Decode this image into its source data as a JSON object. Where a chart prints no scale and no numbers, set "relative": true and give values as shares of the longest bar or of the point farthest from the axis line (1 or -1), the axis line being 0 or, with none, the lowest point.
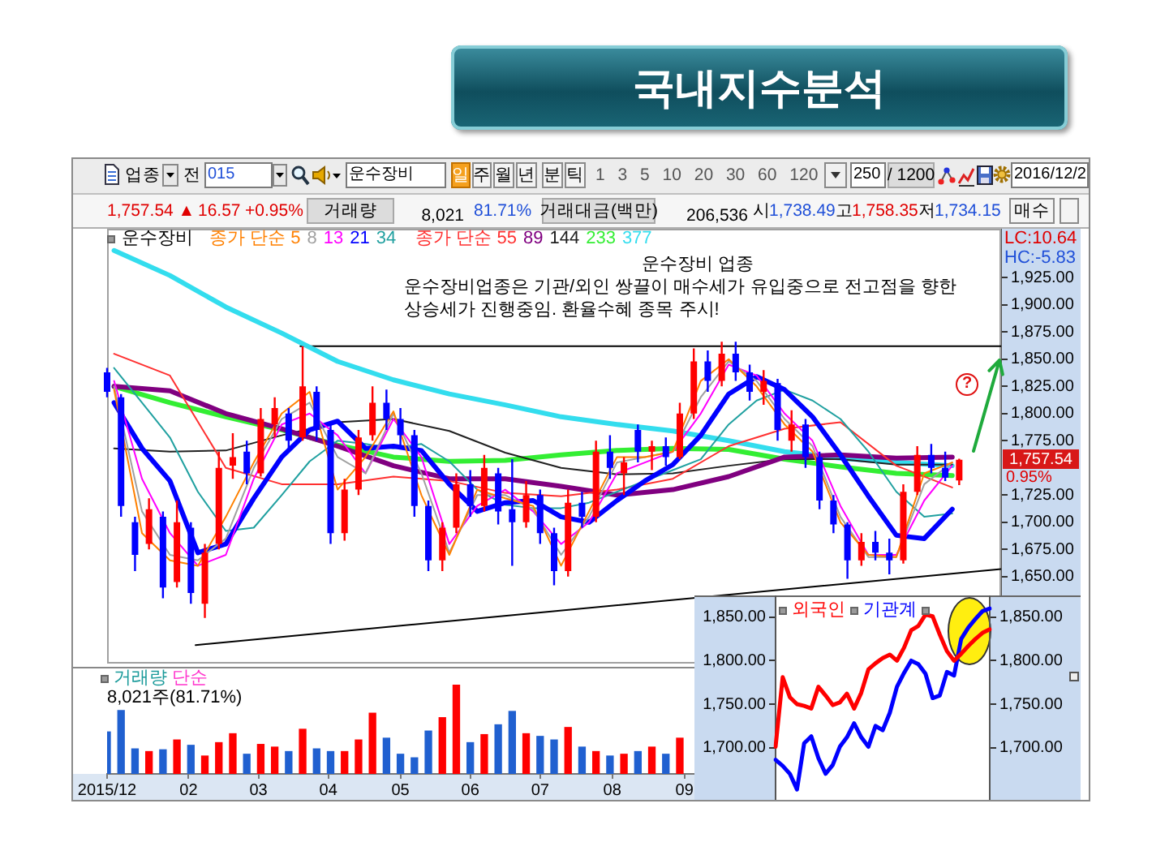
{
  "chart_data": [
    {
      "type": "other",
      "title": "국내지수분석",
      "annotations": [
        "업종",
        "전",
        "015",
        "운수장비",
        "일",
        "주",
        "월",
        "년",
        "분",
        "틱",
        "1 3 5 10 20 30 60 120",
        "250",
        "/ 1200",
        "2016/12/2",
        "1,757.54 ▲",
        "16.57",
        "+0.95%",
        "거래량",
        "8,021",
        "81.71%",
        "거래대금(백만)",
        "206,536",
        "시",
        "1,738.49",
        "고",
        "1,758.35",
        "저",
        "1,734.15",
        "매수"
      ]
    },
    {
      "type": "candlestick",
      "x": [
        "2015-12-28",
        "2016-01-03",
        "2016-01-09",
        "2016-01-15",
        "2016-01-21",
        "2016-01-27",
        "2016-02-02",
        "2016-02-08",
        "2016-02-14",
        "2016-02-20",
        "2016-02-26",
        "2016-03-03",
        "2016-03-09",
        "2016-03-15",
        "2016-03-21",
        "2016-03-27",
        "2016-04-02",
        "2016-04-08",
        "2016-04-14",
        "2016-04-20",
        "2016-04-26",
        "2016-05-02",
        "2016-05-08",
        "2016-05-14",
        "2016-05-20",
        "2016-05-26",
        "2016-06-01",
        "2016-06-07",
        "2016-06-13",
        "2016-06-19",
        "2016-06-25",
        "2016-07-01",
        "2016-07-07",
        "2016-07-13",
        "2016-07-19",
        "2016-07-25",
        "2016-07-31",
        "2016-08-06",
        "2016-08-12",
        "2016-08-18",
        "2016-08-24",
        "2016-08-30",
        "2016-09-05",
        "2016-09-11",
        "2016-09-17",
        "2016-09-23",
        "2016-09-29",
        "2016-10-05",
        "2016-10-11",
        "2016-10-17",
        "2016-10-23",
        "2016-10-29",
        "2016-11-04",
        "2016-11-10",
        "2016-11-16",
        "2016-11-22",
        "2016-11-28",
        "2016-12-04",
        "2016-12-10",
        "2016-12-16",
        "2016-12-22",
        "2016-12-28"
      ],
      "ohlc": [
        [
          1838,
          1842,
          1815,
          1820
        ],
        [
          1815,
          1818,
          1705,
          1715
        ],
        [
          1700,
          1705,
          1655,
          1670
        ],
        [
          1680,
          1722,
          1675,
          1712
        ],
        [
          1705,
          1710,
          1630,
          1640
        ],
        [
          1645,
          1720,
          1640,
          1700
        ],
        [
          1695,
          1700,
          1625,
          1635
        ],
        [
          1625,
          1680,
          1612,
          1672
        ],
        [
          1680,
          1765,
          1675,
          1750
        ],
        [
          1752,
          1782,
          1740,
          1760
        ],
        [
          1765,
          1775,
          1735,
          1745
        ],
        [
          1745,
          1805,
          1742,
          1795
        ],
        [
          1790,
          1815,
          1778,
          1805
        ],
        [
          1800,
          1805,
          1768,
          1775
        ],
        [
          1778,
          1862,
          1775,
          1825
        ],
        [
          1820,
          1825,
          1775,
          1785
        ],
        [
          1785,
          1790,
          1680,
          1690
        ],
        [
          1690,
          1740,
          1683,
          1730
        ],
        [
          1730,
          1785,
          1725,
          1778
        ],
        [
          1780,
          1825,
          1775,
          1810
        ],
        [
          1810,
          1822,
          1785,
          1795
        ],
        [
          1795,
          1805,
          1770,
          1780
        ],
        [
          1780,
          1785,
          1705,
          1715
        ],
        [
          1715,
          1720,
          1655,
          1665
        ],
        [
          1665,
          1700,
          1655,
          1695
        ],
        [
          1695,
          1745,
          1690,
          1735
        ],
        [
          1735,
          1748,
          1705,
          1715
        ],
        [
          1715,
          1762,
          1710,
          1750
        ],
        [
          1745,
          1750,
          1698,
          1710
        ],
        [
          1712,
          1758,
          1660,
          1700
        ],
        [
          1700,
          1738,
          1695,
          1725
        ],
        [
          1725,
          1730,
          1680,
          1690
        ],
        [
          1690,
          1695,
          1642,
          1655
        ],
        [
          1655,
          1730,
          1650,
          1718
        ],
        [
          1718,
          1728,
          1695,
          1705
        ],
        [
          1705,
          1775,
          1700,
          1765
        ],
        [
          1765,
          1780,
          1740,
          1750
        ],
        [
          1745,
          1760,
          1725,
          1755
        ],
        [
          1785,
          1790,
          1755,
          1765
        ],
        [
          1765,
          1775,
          1748,
          1770
        ],
        [
          1770,
          1778,
          1752,
          1760
        ],
        [
          1760,
          1810,
          1758,
          1800
        ],
        [
          1800,
          1860,
          1795,
          1848
        ],
        [
          1848,
          1858,
          1820,
          1830
        ],
        [
          1830,
          1866,
          1825,
          1855
        ],
        [
          1855,
          1866,
          1830,
          1838
        ],
        [
          1838,
          1845,
          1812,
          1820
        ],
        [
          1820,
          1840,
          1808,
          1830
        ],
        [
          1828,
          1832,
          1775,
          1785
        ],
        [
          1775,
          1803,
          1765,
          1790
        ],
        [
          1790,
          1795,
          1750,
          1760
        ],
        [
          1760,
          1765,
          1712,
          1720
        ],
        [
          1720,
          1725,
          1690,
          1698
        ],
        [
          1698,
          1700,
          1648,
          1665
        ],
        [
          1665,
          1690,
          1660,
          1682
        ],
        [
          1682,
          1692,
          1665,
          1672
        ],
        [
          1672,
          1685,
          1652,
          1665
        ],
        [
          1665,
          1735,
          1662,
          1728
        ],
        [
          1728,
          1770,
          1725,
          1762
        ],
        [
          1762,
          1772,
          1745,
          1750
        ],
        [
          1750,
          1765,
          1738,
          1741
        ],
        [
          1738.49,
          1758.35,
          1734.15,
          1757.54
        ]
      ],
      "colors": [
        "#0000ff",
        "#0000ff",
        "#0000ff",
        "#ff0000",
        "#0000ff",
        "#ff0000",
        "#0000ff",
        "#ff0000",
        "#ff0000",
        "#ff0000",
        "#0000ff",
        "#ff0000",
        "#ff0000",
        "#0000ff",
        "#ff0000",
        "#0000ff",
        "#0000ff",
        "#ff0000",
        "#ff0000",
        "#ff0000",
        "#0000ff",
        "#0000ff",
        "#0000ff",
        "#0000ff",
        "#ff0000",
        "#ff0000",
        "#0000ff",
        "#ff0000",
        "#0000ff",
        "#0000ff",
        "#ff0000",
        "#0000ff",
        "#0000ff",
        "#ff0000",
        "#0000ff",
        "#ff0000",
        "#0000ff",
        "#ff0000",
        "#0000ff",
        "#ff0000",
        "#0000ff",
        "#ff0000",
        "#ff0000",
        "#0000ff",
        "#ff0000",
        "#0000ff",
        "#0000ff",
        "#ff0000",
        "#0000ff",
        "#ff0000",
        "#0000ff",
        "#0000ff",
        "#0000ff",
        "#0000ff",
        "#ff0000",
        "#0000ff",
        "#0000ff",
        "#ff0000",
        "#ff0000",
        "#0000ff",
        "#0000ff",
        "#ff0000"
      ],
      "series": [
        {
          "name": "종가 단순 5",
          "type": "line",
          "color": "#ff8000",
          "x": [
            "2015-12-31",
            "2016-01-12",
            "2016-01-24",
            "2016-02-05",
            "2016-02-17",
            "2016-02-29",
            "2016-03-12",
            "2016-03-24",
            "2016-04-05",
            "2016-04-17",
            "2016-04-29",
            "2016-05-11",
            "2016-05-23",
            "2016-06-04",
            "2016-06-16",
            "2016-06-28",
            "2016-07-10",
            "2016-07-22",
            "2016-08-03",
            "2016-08-15",
            "2016-08-27",
            "2016-09-08",
            "2016-09-20",
            "2016-10-02",
            "2016-10-14",
            "2016-10-26",
            "2016-11-07",
            "2016-11-19",
            "2016-12-01",
            "2016-12-13",
            "2016-12-25"
          ],
          "values": [
            1822,
            1690,
            1665,
            1660,
            1705,
            1755,
            1800,
            1820,
            1730,
            1760,
            1802,
            1725,
            1670,
            1730,
            1722,
            1715,
            1660,
            1710,
            1760,
            1760,
            1765,
            1830,
            1850,
            1825,
            1790,
            1765,
            1700,
            1670,
            1668,
            1745,
            1755
          ]
        },
        {
          "name": "8",
          "type": "line",
          "color": "#a0a0a0",
          "x": [
            "2015-12-31",
            "2016-01-12",
            "2016-01-24",
            "2016-02-05",
            "2016-02-17",
            "2016-02-29",
            "2016-03-12",
            "2016-03-24",
            "2016-04-05",
            "2016-04-17",
            "2016-04-29",
            "2016-05-11",
            "2016-05-23",
            "2016-06-04",
            "2016-06-16",
            "2016-06-28",
            "2016-07-10",
            "2016-07-22",
            "2016-08-03",
            "2016-08-15",
            "2016-08-27",
            "2016-09-08",
            "2016-09-20",
            "2016-10-02",
            "2016-10-14",
            "2016-10-26",
            "2016-11-07",
            "2016-11-19",
            "2016-12-01",
            "2016-12-13",
            "2016-12-25"
          ],
          "values": [
            1825,
            1710,
            1670,
            1665,
            1685,
            1750,
            1795,
            1810,
            1760,
            1745,
            1800,
            1745,
            1672,
            1725,
            1725,
            1712,
            1670,
            1705,
            1755,
            1760,
            1765,
            1815,
            1848,
            1830,
            1795,
            1770,
            1705,
            1668,
            1668,
            1735,
            1755
          ]
        },
        {
          "name": "13",
          "type": "line",
          "color": "#ff00ff",
          "x": [
            "2015-12-31",
            "2016-01-12",
            "2016-01-24",
            "2016-02-05",
            "2016-02-17",
            "2016-02-29",
            "2016-03-12",
            "2016-03-24",
            "2016-04-05",
            "2016-04-17",
            "2016-04-29",
            "2016-05-11",
            "2016-05-23",
            "2016-06-04",
            "2016-06-16",
            "2016-06-28",
            "2016-07-10",
            "2016-07-22",
            "2016-08-03",
            "2016-08-15",
            "2016-08-27",
            "2016-09-08",
            "2016-09-20",
            "2016-10-02",
            "2016-10-14",
            "2016-10-26",
            "2016-11-07",
            "2016-11-19",
            "2016-12-01",
            "2016-12-13",
            "2016-12-25"
          ],
          "values": [
            1830,
            1740,
            1690,
            1660,
            1670,
            1740,
            1790,
            1800,
            1780,
            1745,
            1795,
            1760,
            1680,
            1715,
            1730,
            1710,
            1680,
            1700,
            1745,
            1755,
            1765,
            1800,
            1845,
            1835,
            1800,
            1775,
            1715,
            1670,
            1670,
            1720,
            1752
          ]
        },
        {
          "name": "21",
          "type": "line",
          "color": "#0000ff",
          "x": [
            "2015-12-31",
            "2016-01-12",
            "2016-01-24",
            "2016-02-05",
            "2016-02-17",
            "2016-02-29",
            "2016-03-12",
            "2016-03-24",
            "2016-04-05",
            "2016-04-17",
            "2016-04-29",
            "2016-05-11",
            "2016-05-23",
            "2016-06-04",
            "2016-06-16",
            "2016-06-28",
            "2016-07-10",
            "2016-07-22",
            "2016-08-03",
            "2016-08-15",
            "2016-08-27",
            "2016-09-08",
            "2016-09-20",
            "2016-10-02",
            "2016-10-14",
            "2016-10-26",
            "2016-11-07",
            "2016-11-19",
            "2016-12-01",
            "2016-12-13",
            "2016-12-25"
          ],
          "values": [
            1810,
            1768,
            1738,
            1672,
            1680,
            1722,
            1760,
            1785,
            1793,
            1768,
            1770,
            1766,
            1735,
            1710,
            1718,
            1720,
            1705,
            1700,
            1720,
            1738,
            1753,
            1780,
            1818,
            1834,
            1822,
            1797,
            1762,
            1724,
            1688,
            1685,
            1712
          ]
        },
        {
          "name": "34",
          "type": "line",
          "color": "#20a0a0",
          "x": [
            "2015-12-31",
            "2016-01-12",
            "2016-01-24",
            "2016-02-05",
            "2016-02-17",
            "2016-02-29",
            "2016-03-12",
            "2016-03-24",
            "2016-04-05",
            "2016-04-17",
            "2016-04-29",
            "2016-05-11",
            "2016-05-23",
            "2016-06-04",
            "2016-06-16",
            "2016-06-28",
            "2016-07-10",
            "2016-07-22",
            "2016-08-03",
            "2016-08-15",
            "2016-08-27",
            "2016-09-08",
            "2016-09-20",
            "2016-10-02",
            "2016-10-14",
            "2016-10-26",
            "2016-11-07",
            "2016-11-19",
            "2016-12-01",
            "2016-12-13",
            "2016-12-25"
          ],
          "values": [
            1842,
            1810,
            1778,
            1728,
            1692,
            1695,
            1725,
            1756,
            1775,
            1772,
            1768,
            1772,
            1756,
            1730,
            1716,
            1713,
            1713,
            1718,
            1728,
            1738,
            1748,
            1758,
            1790,
            1812,
            1822,
            1812,
            1795,
            1765,
            1728,
            1705,
            1708
          ]
        },
        {
          "name": "종가 단순 55",
          "type": "line",
          "color": "#ff3030",
          "x": [
            "2015-12-31",
            "2016-01-24",
            "2016-02-17",
            "2016-03-12",
            "2016-04-05",
            "2016-04-29",
            "2016-05-23",
            "2016-06-16",
            "2016-07-10",
            "2016-08-03",
            "2016-08-27",
            "2016-09-20",
            "2016-10-14",
            "2016-11-07",
            "2016-12-01",
            "2016-12-25"
          ],
          "values": [
            1855,
            1835,
            1750,
            1735,
            1735,
            1742,
            1738,
            1727,
            1724,
            1730,
            1740,
            1770,
            1786,
            1792,
            1752,
            1732
          ]
        },
        {
          "name": "89",
          "type": "line",
          "color": "#800080",
          "x": [
            "2015-12-31",
            "2016-01-24",
            "2016-02-17",
            "2016-03-12",
            "2016-04-05",
            "2016-04-29",
            "2016-05-23",
            "2016-06-16",
            "2016-07-10",
            "2016-08-03",
            "2016-08-27",
            "2016-09-20",
            "2016-10-14",
            "2016-11-07",
            "2016-12-01",
            "2016-12-25"
          ],
          "values": [
            1825,
            1821,
            1800,
            1786,
            1770,
            1752,
            1740,
            1740,
            1733,
            1725,
            1730,
            1742,
            1760,
            1762,
            1759,
            1760
          ]
        },
        {
          "name": "144",
          "type": "line",
          "color": "#202020",
          "x": [
            "2015-12-31",
            "2016-01-24",
            "2016-02-17",
            "2016-03-12",
            "2016-04-05",
            "2016-04-29",
            "2016-05-23",
            "2016-06-16",
            "2016-07-10",
            "2016-08-03",
            "2016-08-27",
            "2016-09-20",
            "2016-10-14",
            "2016-11-07",
            "2016-12-01",
            "2016-12-25"
          ],
          "values": [
            1768,
            1765,
            1766,
            1780,
            1792,
            1795,
            1784,
            1764,
            1750,
            1744,
            1745,
            1752,
            1758,
            1758,
            1753,
            1753
          ]
        },
        {
          "name": "233",
          "type": "line",
          "color": "#33ee33",
          "x": [
            "2015-12-31",
            "2016-01-24",
            "2016-02-17",
            "2016-03-12",
            "2016-04-05",
            "2016-04-29",
            "2016-05-23",
            "2016-06-16",
            "2016-07-10",
            "2016-08-03",
            "2016-08-27",
            "2016-09-20",
            "2016-10-14",
            "2016-11-07",
            "2016-12-01",
            "2016-12-25"
          ],
          "values": [
            1825,
            1810,
            1797,
            1785,
            1771,
            1760,
            1756,
            1757,
            1762,
            1766,
            1768,
            1767,
            1758,
            1751,
            1745,
            1743
          ]
        },
        {
          "name": "377",
          "type": "line",
          "color": "#33ddee",
          "x": [
            "2015-12-31",
            "2016-01-24",
            "2016-02-17",
            "2016-03-12",
            "2016-04-05",
            "2016-04-29",
            "2016-05-23",
            "2016-06-16",
            "2016-07-10",
            "2016-08-03",
            "2016-08-27",
            "2016-09-20",
            "2016-10-14",
            "2016-11-07",
            "2016-12-01",
            "2016-12-25"
          ],
          "values": [
            1950,
            1927,
            1898,
            1874,
            1848,
            1831,
            1818,
            1808,
            1797,
            1790,
            1784,
            1775,
            1765,
            1759,
            1755,
            1752
          ]
        },
        {
          "type": "line",
          "color": "#000000",
          "x": [
            "2016-03-20",
            "2017-01-15"
          ],
          "values": [
            1862,
            1862
          ]
        },
        {
          "type": "line",
          "color": "#000000",
          "x": [
            "2016-02-04",
            "2017-01-15"
          ],
          "values": [
            1587,
            1657
          ]
        }
      ],
      "xlim": [
        "2015-12-28",
        "2017-01-15"
      ],
      "ylim": [
        1570,
        1970
      ],
      "yticks": [
        {
          "value": 1925,
          "label": "1,925.00"
        },
        {
          "value": 1900,
          "label": "1,900.00"
        },
        {
          "value": 1875,
          "label": "1,875.00"
        },
        {
          "value": 1850,
          "label": "1,850.00"
        },
        {
          "value": 1825,
          "label": "1,825.00"
        },
        {
          "value": 1800,
          "label": "1,800.00"
        },
        {
          "value": 1775,
          "label": "1,775.00"
        },
        {
          "value": 1725,
          "label": "1,725.00"
        },
        {
          "value": 1700,
          "label": "1,700.00"
        },
        {
          "value": 1675,
          "label": "1,675.00"
        },
        {
          "value": 1650,
          "label": "1,650.00"
        }
      ],
      "tick_labels": "y",
      "legend": "top left",
      "legend_title": "운수장비",
      "marker": "none",
      "annotations": [
        "운수장비 업종",
        "운수장비업종은 기관/외인 쌍끌이 매수세가 유입중으로 전고점을 향한 상승세가 진행중임. 환율수혜 종목 주시!",
        "?",
        "1,757.54",
        "0.95%",
        "LC:10.64",
        "HC:-5.83"
      ]
    },
    {
      "type": "bar",
      "relative": true,
      "x": [
        "2015-12-28",
        "2016-01-03",
        "2016-01-09",
        "2016-01-15",
        "2016-01-21",
        "2016-01-27",
        "2016-02-02",
        "2016-02-08",
        "2016-02-14",
        "2016-02-20",
        "2016-02-26",
        "2016-03-03",
        "2016-03-09",
        "2016-03-15",
        "2016-03-21",
        "2016-03-27",
        "2016-04-02",
        "2016-04-08",
        "2016-04-14",
        "2016-04-20",
        "2016-04-26",
        "2016-05-02",
        "2016-05-08",
        "2016-05-14",
        "2016-05-20",
        "2016-05-26",
        "2016-06-01",
        "2016-06-07",
        "2016-06-13",
        "2016-06-19",
        "2016-06-25",
        "2016-07-01",
        "2016-07-07",
        "2016-07-13",
        "2016-07-19",
        "2016-07-25",
        "2016-07-31",
        "2016-08-06",
        "2016-08-12",
        "2016-08-18",
        "2016-08-24",
        "2016-08-30"
      ],
      "values": [
        0.47,
        0.71,
        0.28,
        0.25,
        0.27,
        0.38,
        0.32,
        0.2,
        0.35,
        0.45,
        0.22,
        0.33,
        0.3,
        0.25,
        0.5,
        0.28,
        0.25,
        0.25,
        0.38,
        0.68,
        0.4,
        0.22,
        0.18,
        0.48,
        0.63,
        1,
        0.35,
        0.44,
        0.55,
        0.7,
        0.45,
        0.42,
        0.38,
        0.52,
        0.3,
        0.25,
        0.2,
        0.22,
        0.25,
        0.3,
        0.22,
        0.4
      ],
      "colors": [
        "#2060d0",
        "#2060d0",
        "#2060d0",
        "#ff0000",
        "#2060d0",
        "#ff0000",
        "#2060d0",
        "#ff0000",
        "#ff0000",
        "#ff0000",
        "#2060d0",
        "#ff0000",
        "#ff0000",
        "#2060d0",
        "#ff0000",
        "#2060d0",
        "#2060d0",
        "#ff0000",
        "#ff0000",
        "#ff0000",
        "#2060d0",
        "#2060d0",
        "#2060d0",
        "#2060d0",
        "#ff0000",
        "#ff0000",
        "#2060d0",
        "#ff0000",
        "#2060d0",
        "#2060d0",
        "#ff0000",
        "#2060d0",
        "#2060d0",
        "#ff0000",
        "#2060d0",
        "#ff0000",
        "#2060d0",
        "#ff0000",
        "#2060d0",
        "#ff0000",
        "#2060d0",
        "#ff0000"
      ],
      "xlim": [
        "2015-12-28",
        "2017-01-15"
      ],
      "xticks": [
        {
          "value": "2015-12-28",
          "label": "2015/12"
        },
        {
          "value": "2016-02-01",
          "label": "02"
        },
        {
          "value": "2016-03-02",
          "label": "03"
        },
        {
          "value": "2016-04-01",
          "label": "04"
        },
        {
          "value": "2016-05-02",
          "label": "05"
        },
        {
          "value": "2016-06-01",
          "label": "06"
        },
        {
          "value": "2016-07-01",
          "label": "07"
        },
        {
          "value": "2016-08-01",
          "label": "08"
        },
        {
          "value": "2016-09-01",
          "label": "09"
        }
      ],
      "tick_labels": "x",
      "annotations": [
        "거래량",
        "단순",
        "8,021주(81.71%)"
      ]
    },
    {
      "type": "line",
      "categories": [
        null,
        null,
        null,
        null,
        null,
        null,
        null,
        null,
        null,
        null,
        null,
        null,
        null,
        null,
        null,
        null,
        null,
        null,
        null,
        null,
        null,
        null,
        null,
        null,
        null,
        null,
        null,
        null,
        null,
        null,
        null
      ],
      "series": [
        {
          "name": "외국인",
          "color": "#ff0000",
          "values": [
            1701,
            1781,
            1758,
            1750,
            1748,
            1745,
            1770,
            1760,
            1749,
            1752,
            1762,
            1745,
            1763,
            1790,
            1797,
            1803,
            1807,
            1800,
            1815,
            1835,
            1840,
            1853,
            1851,
            1830,
            1811,
            1800,
            1808,
            1817,
            1825,
            1832,
            1836
          ]
        },
        {
          "name": "기관계",
          "color": "#0000ff",
          "values": [
            1686,
            1679,
            1670,
            1652,
            1705,
            1713,
            1688,
            1670,
            1680,
            1701,
            1712,
            1728,
            1712,
            1701,
            1725,
            1720,
            1740,
            1770,
            1786,
            1800,
            1796,
            1785,
            1757,
            1760,
            1787,
            1783,
            1825,
            1838,
            1848,
            1857,
            1860
          ]
        }
      ],
      "ylim": [
        1640,
        1875
      ],
      "yticks": [
        {
          "value": 1850,
          "label": "1,850.00"
        },
        {
          "value": 1800,
          "label": "1,800.00"
        },
        {
          "value": 1750,
          "label": "1,750.00"
        },
        {
          "value": 1700,
          "label": "1,700.00"
        }
      ],
      "y2lim": [
        1640,
        1875
      ],
      "y2ticks": [
        {
          "value": 1850,
          "label": "1,850.00"
        },
        {
          "value": 1800,
          "label": "1,800.00"
        },
        {
          "value": 1750,
          "label": "1,750.00"
        },
        {
          "value": 1700,
          "label": "1,700.00"
        }
      ],
      "legend": "top left",
      "marker": "none"
    }
  ]
}
